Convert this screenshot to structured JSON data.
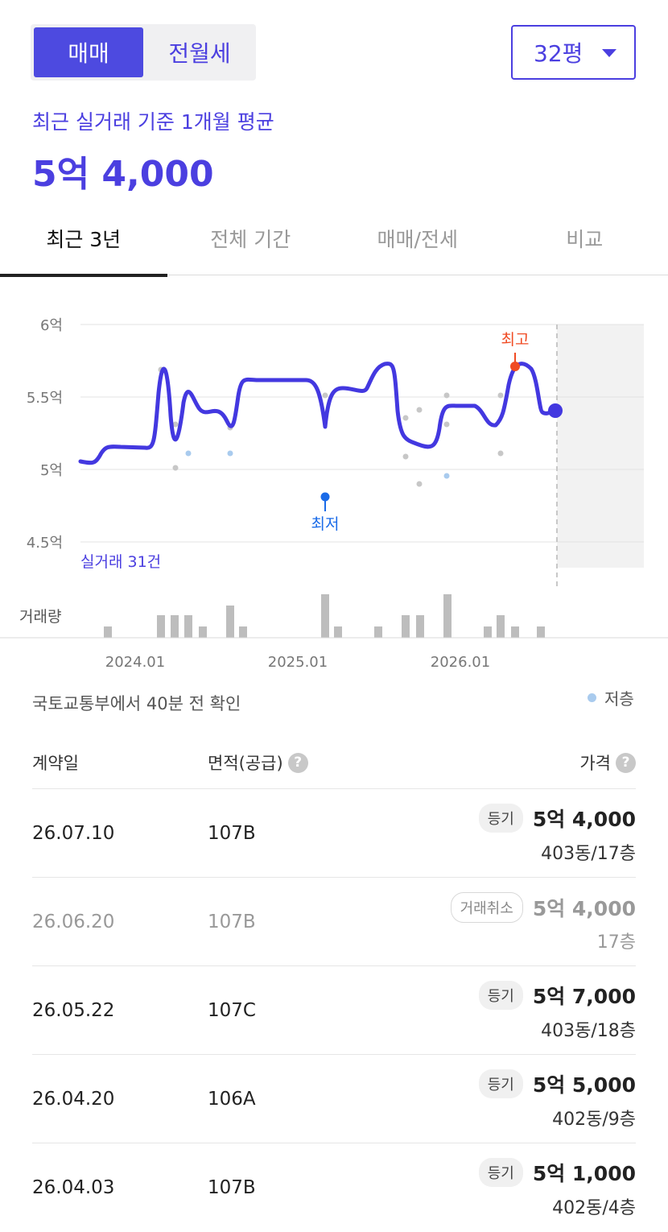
{
  "segment": {
    "items": [
      "매매",
      "전월세"
    ],
    "active": 0
  },
  "size_select": {
    "value": "32평"
  },
  "summary": {
    "label": "최근 실거래 기준 1개월 평균",
    "price": "5억 4,000"
  },
  "tabs": [
    "최근 3년",
    "전체 기간",
    "매매/전세",
    "비교"
  ],
  "chart_data": {
    "type": "line",
    "y_ticks": [
      "6억",
      "5.5억",
      "5억",
      "4.5억"
    ],
    "ylim": [
      4.5,
      6.0
    ],
    "x_ticks": [
      "2024.01",
      "2025.01",
      "2026.01"
    ],
    "count_label": "실거래 31건",
    "volume_label": "거래량",
    "max_label": "최고",
    "min_label": "최저",
    "accent_color": "#4338e0",
    "max_color": "#f04b23",
    "min_color": "#1a6be8",
    "current_value": 5.4,
    "max_value": 5.7,
    "min_value": 4.8
  },
  "footer": {
    "source": "국토교통부에서 40분 전 확인",
    "legend_low_floor": "저층"
  },
  "table": {
    "headers": {
      "date": "계약일",
      "area": "면적(공급)",
      "price": "가격"
    },
    "rows": [
      {
        "date": "26.07.10",
        "area": "107B",
        "badge": "등기",
        "price": "5억 4,000",
        "unit": "403동/17층",
        "cancelled": false
      },
      {
        "date": "26.06.20",
        "area": "107B",
        "badge": "거래취소",
        "price": "5억 4,000",
        "unit": "17층",
        "cancelled": true
      },
      {
        "date": "26.05.22",
        "area": "107C",
        "badge": "등기",
        "price": "5억 7,000",
        "unit": "403동/18층",
        "cancelled": false
      },
      {
        "date": "26.04.20",
        "area": "106A",
        "badge": "등기",
        "price": "5억 5,000",
        "unit": "402동/9층",
        "cancelled": false
      },
      {
        "date": "26.04.03",
        "area": "107B",
        "badge": "등기",
        "price": "5억 1,000",
        "unit": "402동/4층",
        "cancelled": false
      }
    ]
  }
}
